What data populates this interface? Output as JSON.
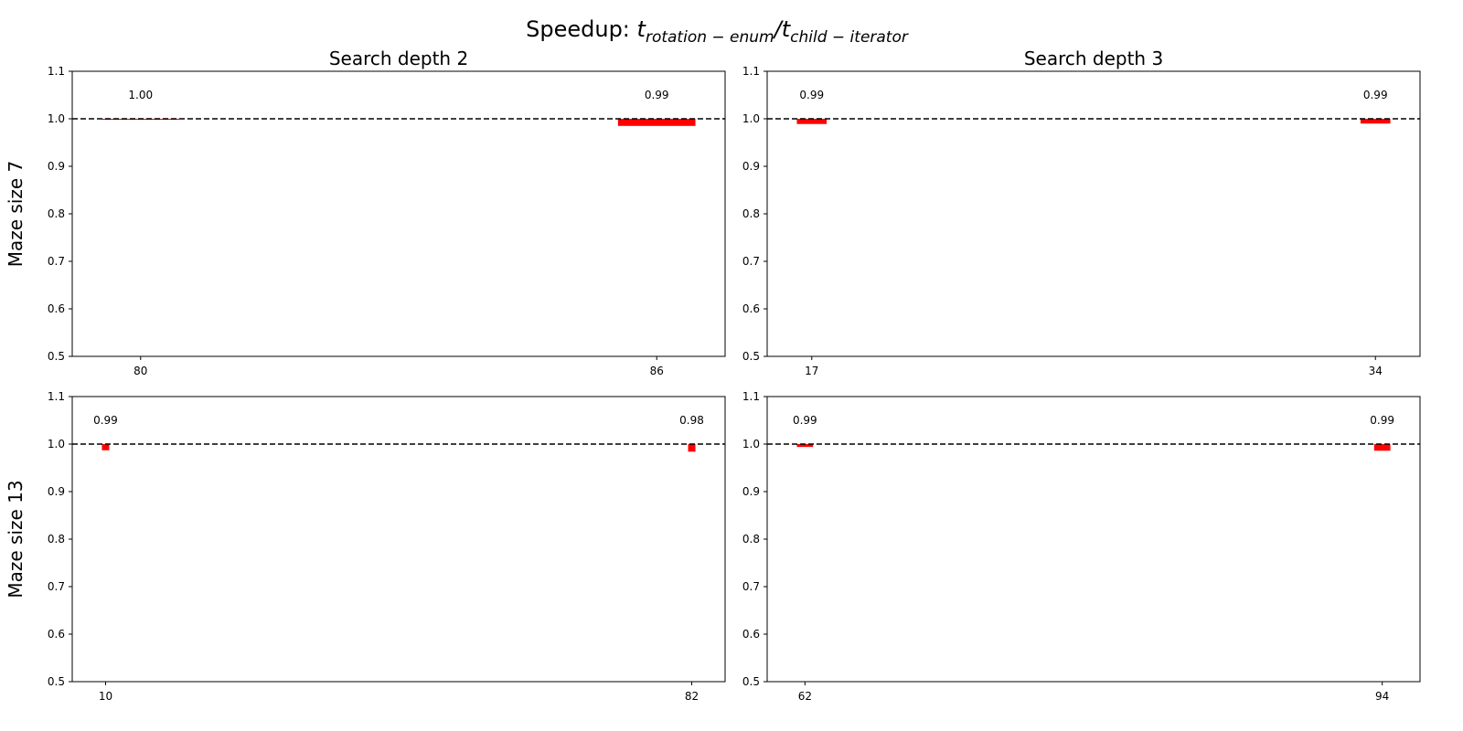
{
  "figure": {
    "title": {
      "text": "Speedup: ",
      "numerator": "t",
      "numerator_sub": "rotation − enum",
      "separator": "/",
      "denominator": "t",
      "denominator_sub": "child − iterator"
    }
  },
  "chart_data": [
    {
      "type": "bar",
      "title": "Search depth 2",
      "ylabel": "Maze size 7",
      "x": [
        80,
        86
      ],
      "values": [
        0.998,
        0.985
      ],
      "value_labels": [
        "1.00",
        "0.99"
      ],
      "color": "#ff0000",
      "bar_width": 0.9,
      "hline": 1,
      "xlim": [
        79.205,
        86.795
      ],
      "xticks": [
        80,
        86
      ],
      "ylim": [
        0.5,
        1.1
      ],
      "yticks": [
        0.5,
        0.6,
        0.7,
        0.8,
        0.9,
        {
          "value": 1,
          "label": "1.0"
        },
        1.1
      ]
    },
    {
      "type": "bar",
      "title": "Search depth 3",
      "x": [
        17,
        34
      ],
      "values": [
        0.989,
        0.99
      ],
      "value_labels": [
        "0.99",
        "0.99"
      ],
      "color": "#ff0000",
      "bar_width": 0.9,
      "hline": 1,
      "xlim": [
        15.655,
        35.345
      ],
      "xticks": [
        17,
        34
      ],
      "ylim": [
        0.5,
        1.1
      ],
      "yticks": [
        0.5,
        0.6,
        0.7,
        0.8,
        0.9,
        {
          "value": 1,
          "label": "1.0"
        },
        1.1
      ]
    },
    {
      "type": "bar",
      "ylabel": "Maze size 13",
      "x": [
        10,
        82
      ],
      "values": [
        0.987,
        0.984
      ],
      "value_labels": [
        "0.99",
        "0.98"
      ],
      "color": "#ff0000",
      "bar_width": 0.9,
      "hline": 1,
      "xlim": [
        5.905,
        86.095
      ],
      "xticks": [
        10,
        82
      ],
      "ylim": [
        0.5,
        1.1
      ],
      "yticks": [
        0.5,
        0.6,
        0.7,
        0.8,
        0.9,
        {
          "value": 1,
          "label": "1.0"
        },
        1.1
      ]
    },
    {
      "type": "bar",
      "x": [
        62,
        94
      ],
      "values": [
        0.994,
        0.986
      ],
      "value_labels": [
        "0.99",
        "0.99"
      ],
      "color": "#ff0000",
      "bar_width": 0.9,
      "hline": 1,
      "xlim": [
        59.905,
        96.095
      ],
      "xticks": [
        62,
        94
      ],
      "ylim": [
        0.5,
        1.1
      ],
      "yticks": [
        0.5,
        0.6,
        0.7,
        0.8,
        0.9,
        {
          "value": 1,
          "label": "1.0"
        },
        1.1
      ]
    }
  ]
}
